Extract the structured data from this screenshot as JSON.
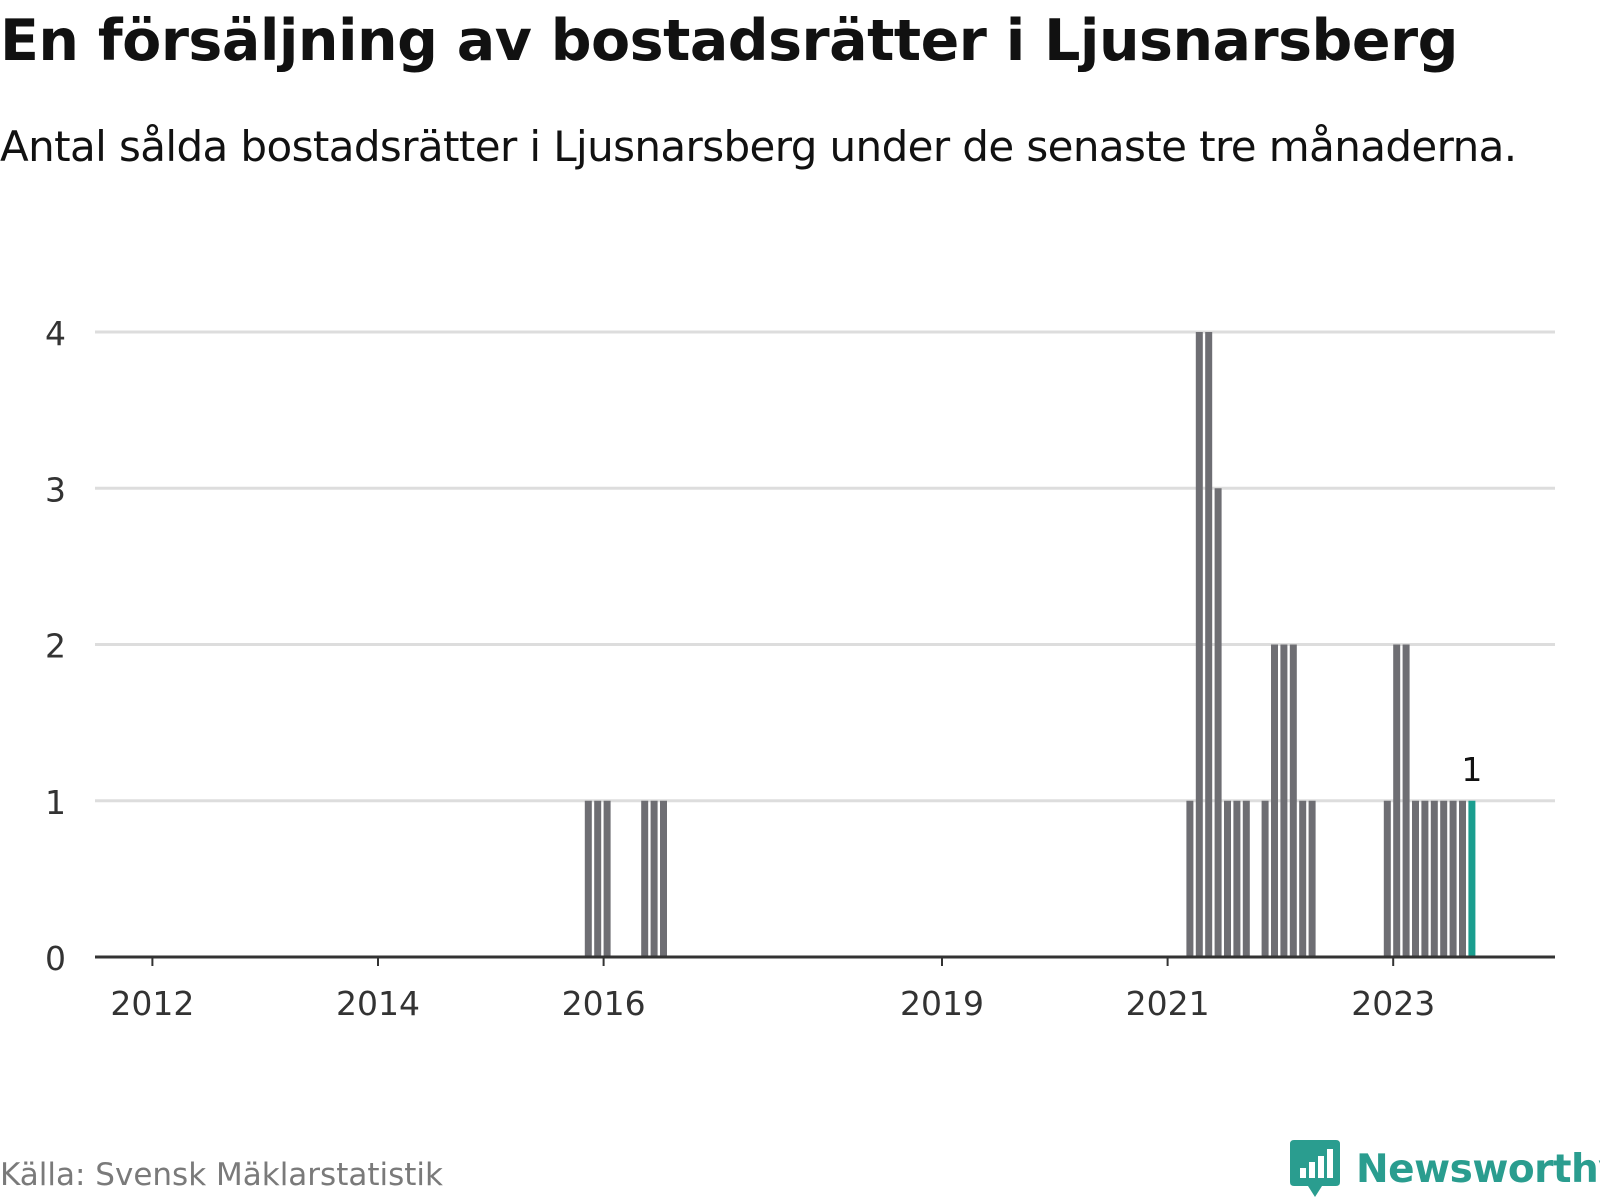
{
  "header": {
    "title": "En försäljning av bostadsrätter i Ljusnarsberg",
    "subtitle": "Antal sålda bostadsrätter i Ljusnarsberg under de senaste tre månaderna."
  },
  "footer": {
    "source": "Källa: Svensk Mäklarstatistik",
    "brand": "Newsworthy"
  },
  "colors": {
    "bar": "#6e6e73",
    "highlight": "#1a9e8f",
    "grid": "#dddddd",
    "axis": "#333333",
    "brand": "#2a9d8f"
  },
  "chart_data": {
    "type": "bar",
    "title": "En försäljning av bostadsrätter i Ljusnarsberg",
    "subtitle": "Antal sålda bostadsrätter i Ljusnarsberg under de senaste tre månaderna.",
    "xlabel": "",
    "ylabel": "",
    "ylim": [
      0,
      4
    ],
    "yticks": [
      0,
      1,
      2,
      3,
      4
    ],
    "grid": true,
    "x_start": "2011-07",
    "x_ticks": [
      {
        "label": "2012",
        "month": "2012-01"
      },
      {
        "label": "2014",
        "month": "2014-01"
      },
      {
        "label": "2016",
        "month": "2016-01"
      },
      {
        "label": "2019",
        "month": "2019-01"
      },
      {
        "label": "2021",
        "month": "2021-01"
      },
      {
        "label": "2023",
        "month": "2023-01"
      }
    ],
    "categories": [
      "2015-11",
      "2015-12",
      "2016-01",
      "2016-05",
      "2016-06",
      "2016-07",
      "2021-03",
      "2021-04",
      "2021-05",
      "2021-06",
      "2021-07",
      "2021-08",
      "2021-09",
      "2021-11",
      "2021-12",
      "2022-01",
      "2022-02",
      "2022-03",
      "2022-04",
      "2022-12",
      "2023-01",
      "2023-02",
      "2023-03",
      "2023-04",
      "2023-05",
      "2023-06",
      "2023-07",
      "2023-08",
      "2023-09"
    ],
    "values": [
      1,
      1,
      1,
      1,
      1,
      1,
      1,
      4,
      4,
      3,
      1,
      1,
      1,
      1,
      2,
      2,
      2,
      1,
      1,
      1,
      2,
      2,
      1,
      1,
      1,
      1,
      1,
      1,
      1
    ],
    "highlight": {
      "month": "2023-09",
      "label": "1"
    }
  }
}
